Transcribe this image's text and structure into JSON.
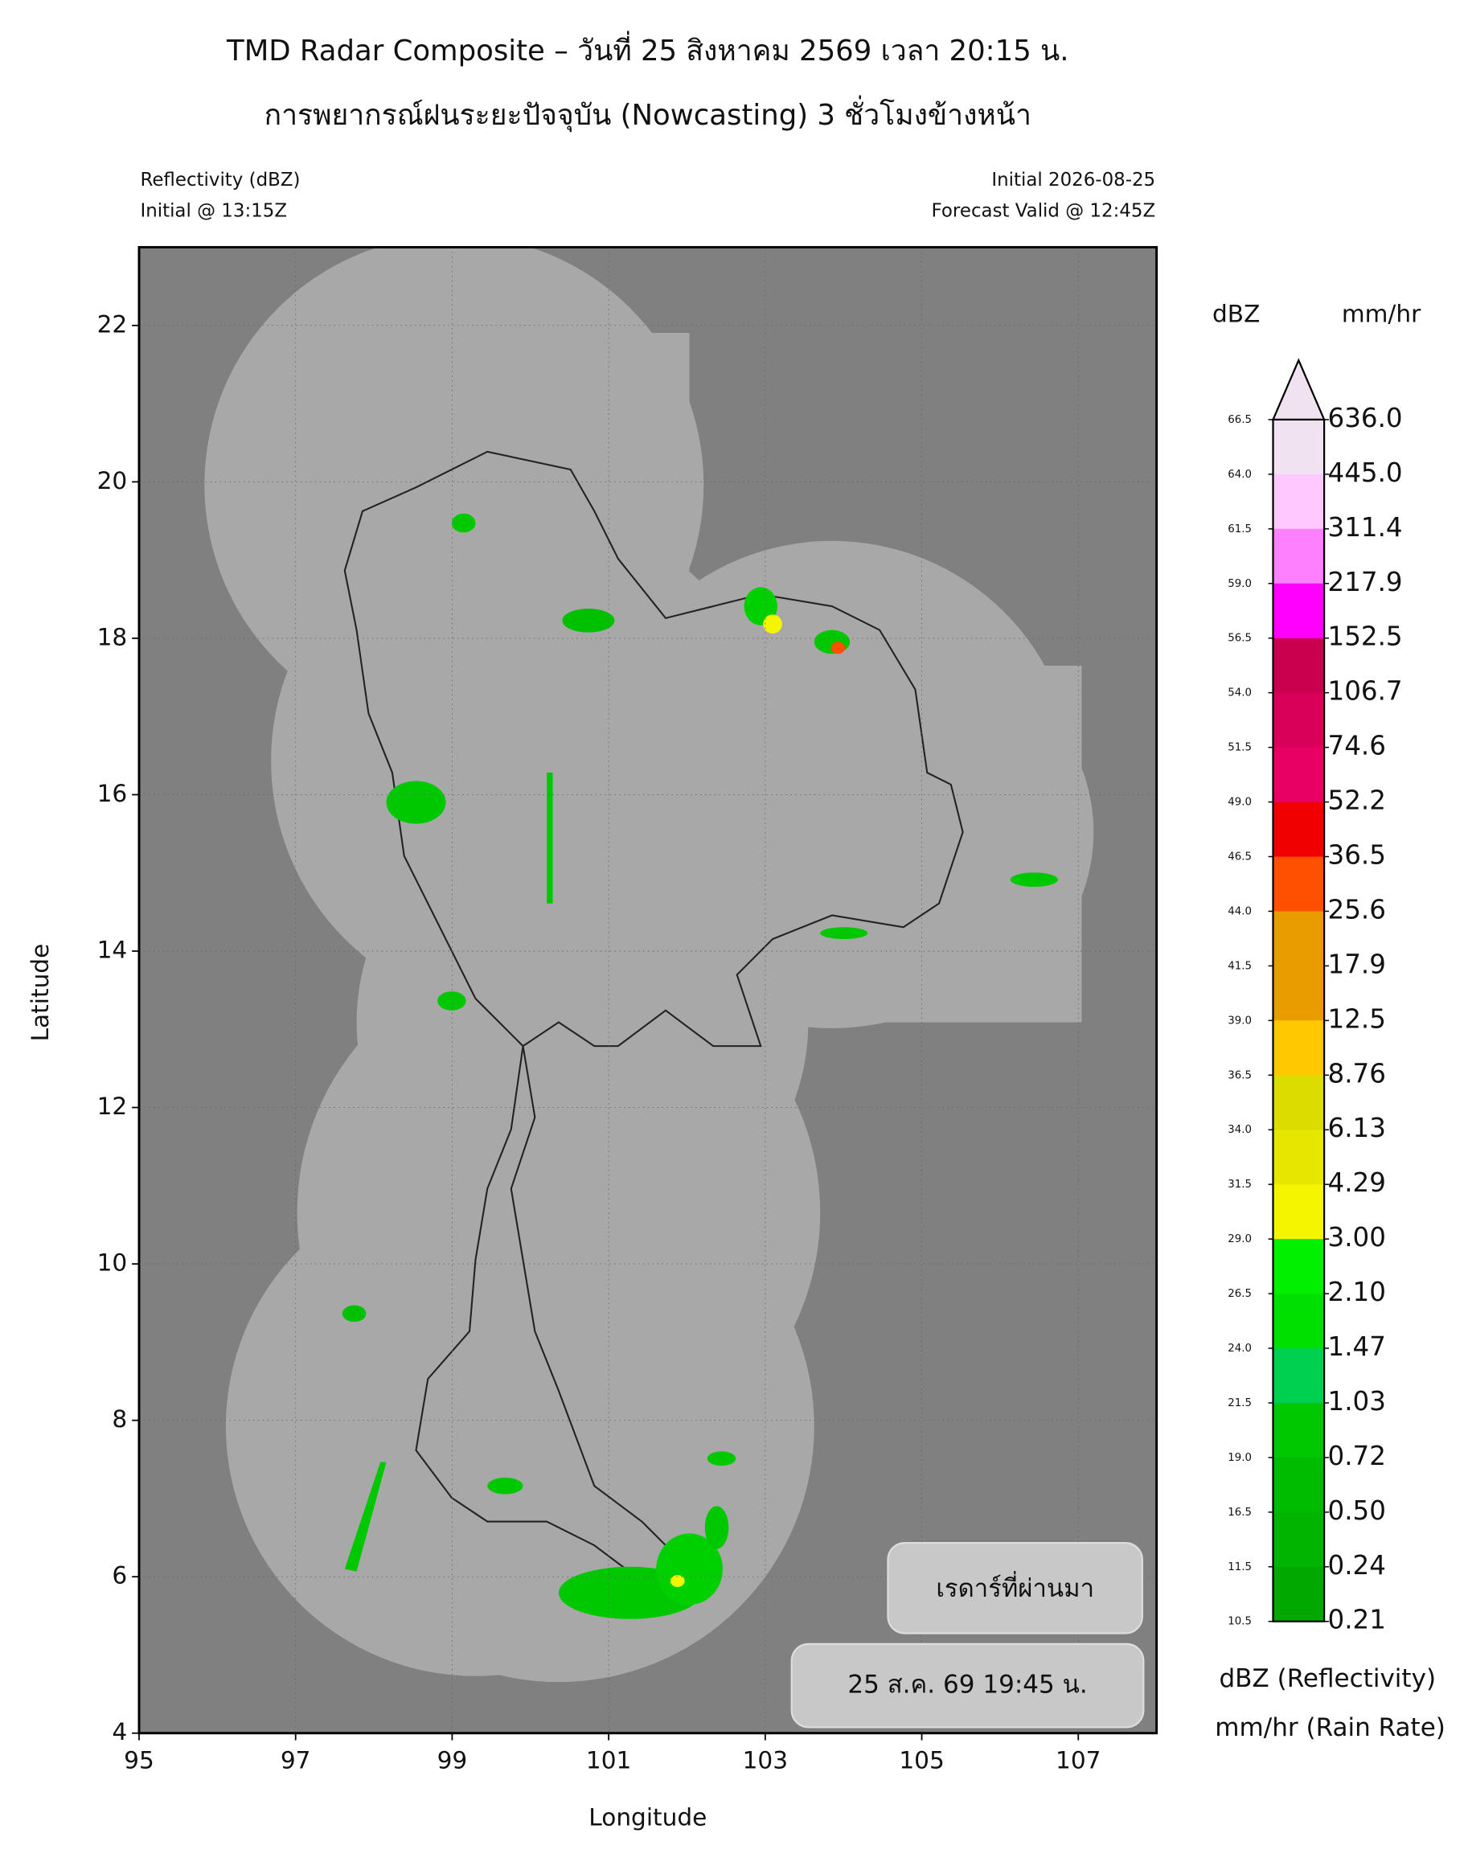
{
  "chart_data": {
    "type": "map",
    "title": "TMD Radar Composite – วันที่ 25 สิงหาคม 2569 เวลา 20:15 น.",
    "subtitle": "การพยากรณ์ฝนระยะปัจจุบัน (Nowcasting) 3 ชั่วโมงข้างหน้า",
    "info_left": [
      "Reflectivity (dBZ)",
      "Initial @ 13:15Z"
    ],
    "info_right": [
      "Initial 2026-08-25",
      "Forecast Valid @ 12:45Z"
    ],
    "xlabel": "Longitude",
    "ylabel": "Latitude",
    "xlim": [
      95,
      108
    ],
    "ylim": [
      4,
      23
    ],
    "xticks": [
      95,
      97,
      99,
      101,
      103,
      105,
      107
    ],
    "yticks": [
      4,
      6,
      8,
      10,
      12,
      14,
      16,
      18,
      20,
      22
    ],
    "grid": true,
    "colorbar": {
      "dbz_title": "dBZ",
      "rain_title": "mm/hr",
      "dbz_levels": [
        66.5,
        {
          "value": 64,
          "label": "64.0"
        },
        61.5,
        {
          "value": 59,
          "label": "59.0"
        },
        56.5,
        {
          "value": 54,
          "label": "54.0"
        },
        51.5,
        {
          "value": 49,
          "label": "49.0"
        },
        46.5,
        {
          "value": 44,
          "label": "44.0"
        },
        41.5,
        {
          "value": 39,
          "label": "39.0"
        },
        36.5,
        {
          "value": 34,
          "label": "34.0"
        },
        31.5,
        {
          "value": 29,
          "label": "29.0"
        },
        26.5,
        {
          "value": 24,
          "label": "24.0"
        },
        21.5,
        {
          "value": 19,
          "label": "19.0"
        },
        16.5,
        11.5,
        10.5
      ],
      "rain_levels": [
        {
          "value": 636,
          "label": "636.0"
        },
        {
          "value": 445,
          "label": "445.0"
        },
        311.4,
        217.9,
        152.5,
        106.7,
        74.6,
        52.2,
        36.5,
        25.6,
        17.9,
        12.5,
        8.76,
        6.13,
        4.29,
        {
          "value": 3,
          "label": "3.00"
        },
        {
          "value": 2.1,
          "label": "2.10"
        },
        1.47,
        1.03,
        0.72,
        {
          "value": 0.5,
          "label": "0.50"
        },
        0.24,
        0.21
      ],
      "colors": [
        "#f0e2f0",
        "#ffc8ff",
        "#ff80ff",
        "#ff00ff",
        "#c8004e",
        "#d80058",
        "#e80064",
        "#f00000",
        "#ff5000",
        "#e89c00",
        "#e89c00",
        "#ffc800",
        "#dcdc00",
        "#e6e600",
        "#f5f500",
        "#00f000",
        "#00e000",
        "#00d050",
        "#00c800",
        "#00bc00",
        "#00b400",
        "#00a800"
      ],
      "extend_color": "#f0e2f0",
      "caption": [
        "dBZ (Reflectivity)",
        "mm/hr (Rain Rate)"
      ]
    }
  },
  "controls": {
    "previous_radar": "เรดาร์ที่ผ่านมา",
    "timestamp": "25 ส.ค. 69 19:45 น."
  }
}
